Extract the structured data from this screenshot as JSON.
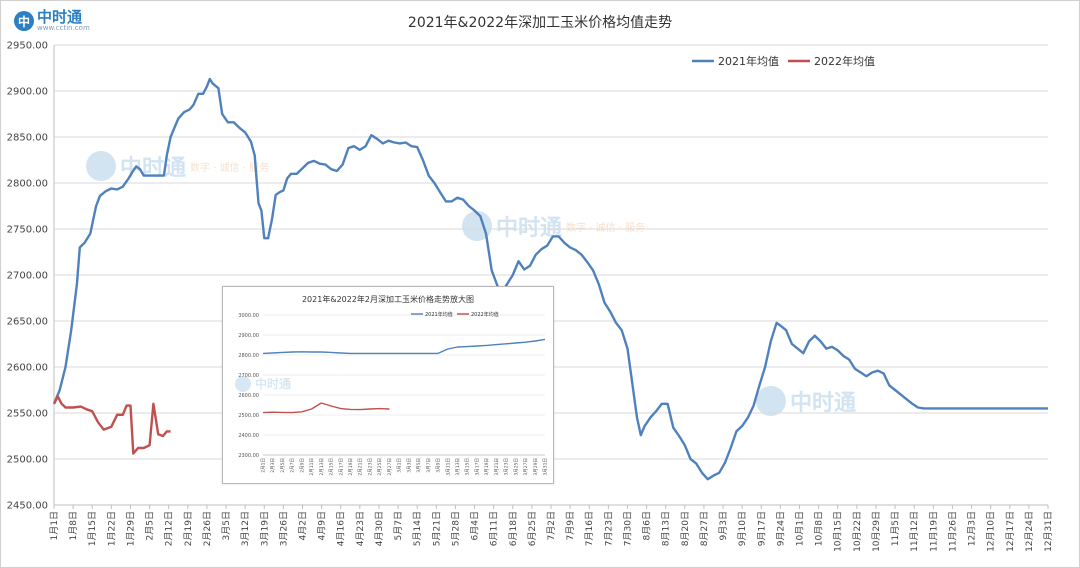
{
  "logo": {
    "name": "中时通",
    "url": "www.cctin.com"
  },
  "watermark": {
    "name": "中时通",
    "slogan": "数字 · 诚信 · 服务"
  },
  "chart_data": {
    "type": "line",
    "title": "2021年&2022年深加工玉米价格均值走势",
    "ylim": [
      2450,
      2950
    ],
    "y_ticks": [
      "2950.00",
      "2900.00",
      "2850.00",
      "2800.00",
      "2750.00",
      "2700.00",
      "2650.00",
      "2600.00",
      "2550.00",
      "2500.00",
      "2450.00"
    ],
    "categories": [
      "1月1日",
      "1月8日",
      "1月15日",
      "1月22日",
      "1月29日",
      "2月5日",
      "2月12日",
      "2月19日",
      "2月26日",
      "3月5日",
      "3月12日",
      "3月19日",
      "3月26日",
      "4月2日",
      "4月9日",
      "4月16日",
      "4月23日",
      "4月30日",
      "5月7日",
      "5月14日",
      "5月21日",
      "5月28日",
      "6月4日",
      "6月11日",
      "6月18日",
      "6月25日",
      "7月2日",
      "7月9日",
      "7月16日",
      "7月23日",
      "7月30日",
      "8月6日",
      "8月13日",
      "8月20日",
      "8月27日",
      "9月3日",
      "9月10日",
      "9月17日",
      "9月24日",
      "10月1日",
      "10月8日",
      "10月15日",
      "10月22日",
      "10月29日",
      "11月5日",
      "11月12日",
      "11月19日",
      "11月26日",
      "12月3日",
      "12月10日",
      "12月17日",
      "12月24日",
      "12月31日"
    ],
    "legend_position": "top-right",
    "series": [
      {
        "name": "2021年均值",
        "color": "#4f81bd",
        "points": [
          [
            0,
            2560
          ],
          [
            0.3,
            2575
          ],
          [
            0.6,
            2600
          ],
          [
            0.9,
            2640
          ],
          [
            1.2,
            2690
          ],
          [
            1.35,
            2730
          ],
          [
            1.6,
            2735
          ],
          [
            1.9,
            2745
          ],
          [
            2.2,
            2775
          ],
          [
            2.4,
            2786
          ],
          [
            2.7,
            2791
          ],
          [
            3.0,
            2794
          ],
          [
            3.3,
            2793
          ],
          [
            3.6,
            2796
          ],
          [
            3.9,
            2805
          ],
          [
            4.1,
            2812
          ],
          [
            4.3,
            2818
          ],
          [
            4.5,
            2815
          ],
          [
            4.7,
            2808
          ],
          [
            5.0,
            2808
          ],
          [
            5.5,
            2808
          ],
          [
            5.75,
            2808
          ],
          [
            5.9,
            2830
          ],
          [
            6.1,
            2850
          ],
          [
            6.3,
            2860
          ],
          [
            6.5,
            2870
          ],
          [
            6.8,
            2877
          ],
          [
            7.1,
            2880
          ],
          [
            7.3,
            2885
          ],
          [
            7.55,
            2897
          ],
          [
            7.8,
            2897
          ],
          [
            8.0,
            2905
          ],
          [
            8.15,
            2913
          ],
          [
            8.3,
            2908
          ],
          [
            8.6,
            2903
          ],
          [
            8.8,
            2875
          ],
          [
            9.1,
            2866
          ],
          [
            9.4,
            2866
          ],
          [
            9.7,
            2860
          ],
          [
            10.0,
            2855
          ],
          [
            10.3,
            2845
          ],
          [
            10.5,
            2830
          ],
          [
            10.7,
            2778
          ],
          [
            10.85,
            2770
          ],
          [
            11.0,
            2740
          ],
          [
            11.2,
            2740
          ],
          [
            11.4,
            2760
          ],
          [
            11.6,
            2787
          ],
          [
            11.8,
            2790
          ],
          [
            12.0,
            2792
          ],
          [
            12.2,
            2805
          ],
          [
            12.4,
            2810
          ],
          [
            12.7,
            2810
          ],
          [
            13.0,
            2816
          ],
          [
            13.3,
            2822
          ],
          [
            13.6,
            2824
          ],
          [
            13.9,
            2821
          ],
          [
            14.2,
            2820
          ],
          [
            14.5,
            2815
          ],
          [
            14.8,
            2813
          ],
          [
            15.1,
            2820
          ],
          [
            15.4,
            2838
          ],
          [
            15.7,
            2840
          ],
          [
            16.0,
            2836
          ],
          [
            16.3,
            2840
          ],
          [
            16.6,
            2852
          ],
          [
            16.9,
            2848
          ],
          [
            17.2,
            2843
          ],
          [
            17.5,
            2846
          ],
          [
            17.8,
            2844
          ],
          [
            18.1,
            2843
          ],
          [
            18.4,
            2844
          ],
          [
            18.7,
            2840
          ],
          [
            19.0,
            2839
          ],
          [
            19.3,
            2825
          ],
          [
            19.6,
            2808
          ],
          [
            19.9,
            2800
          ],
          [
            20.2,
            2790
          ],
          [
            20.5,
            2780
          ],
          [
            20.8,
            2780
          ],
          [
            21.1,
            2784
          ],
          [
            21.4,
            2782
          ],
          [
            21.7,
            2775
          ],
          [
            22.0,
            2770
          ],
          [
            22.3,
            2764
          ],
          [
            22.6,
            2745
          ],
          [
            22.9,
            2705
          ],
          [
            23.2,
            2688
          ],
          [
            23.4,
            2680
          ],
          [
            23.7,
            2690
          ],
          [
            24.0,
            2700
          ],
          [
            24.3,
            2715
          ],
          [
            24.6,
            2706
          ],
          [
            24.9,
            2710
          ],
          [
            25.2,
            2722
          ],
          [
            25.5,
            2728
          ],
          [
            25.8,
            2732
          ],
          [
            26.1,
            2742
          ],
          [
            26.4,
            2742
          ],
          [
            26.7,
            2735
          ],
          [
            27.0,
            2730
          ],
          [
            27.3,
            2727
          ],
          [
            27.6,
            2722
          ],
          [
            27.9,
            2714
          ],
          [
            28.2,
            2705
          ],
          [
            28.5,
            2690
          ],
          [
            28.8,
            2670
          ],
          [
            29.1,
            2660
          ],
          [
            29.4,
            2648
          ],
          [
            29.7,
            2640
          ],
          [
            30.0,
            2620
          ],
          [
            30.3,
            2575
          ],
          [
            30.5,
            2545
          ],
          [
            30.7,
            2526
          ],
          [
            30.9,
            2536
          ],
          [
            31.2,
            2545
          ],
          [
            31.5,
            2552
          ],
          [
            31.8,
            2560
          ],
          [
            32.1,
            2560
          ],
          [
            32.4,
            2534
          ],
          [
            32.7,
            2525
          ],
          [
            33.0,
            2515
          ],
          [
            33.3,
            2500
          ],
          [
            33.6,
            2495
          ],
          [
            33.9,
            2485
          ],
          [
            34.2,
            2478
          ],
          [
            34.5,
            2482
          ],
          [
            34.8,
            2485
          ],
          [
            35.1,
            2496
          ],
          [
            35.4,
            2512
          ],
          [
            35.7,
            2530
          ],
          [
            36.0,
            2536
          ],
          [
            36.3,
            2545
          ],
          [
            36.6,
            2558
          ],
          [
            36.9,
            2580
          ],
          [
            37.2,
            2600
          ],
          [
            37.5,
            2628
          ],
          [
            37.8,
            2648
          ],
          [
            38.0,
            2645
          ],
          [
            38.3,
            2640
          ],
          [
            38.6,
            2625
          ],
          [
            38.9,
            2620
          ],
          [
            39.2,
            2615
          ],
          [
            39.5,
            2628
          ],
          [
            39.8,
            2634
          ],
          [
            40.1,
            2628
          ],
          [
            40.4,
            2620
          ],
          [
            40.7,
            2622
          ],
          [
            41.0,
            2618
          ],
          [
            41.3,
            2612
          ],
          [
            41.6,
            2608
          ],
          [
            41.9,
            2598
          ],
          [
            42.2,
            2594
          ],
          [
            42.5,
            2590
          ],
          [
            42.8,
            2594
          ],
          [
            43.1,
            2596
          ],
          [
            43.4,
            2593
          ],
          [
            43.7,
            2580
          ],
          [
            44.0,
            2575
          ],
          [
            44.3,
            2570
          ],
          [
            44.6,
            2565
          ],
          [
            44.9,
            2560
          ],
          [
            45.2,
            2556
          ],
          [
            45.5,
            2555
          ],
          [
            52,
            2555
          ]
        ]
      },
      {
        "name": "2022年均值",
        "color": "#c0504d",
        "points": [
          [
            0,
            2560
          ],
          [
            0.2,
            2568
          ],
          [
            0.4,
            2560
          ],
          [
            0.6,
            2556
          ],
          [
            1.0,
            2556
          ],
          [
            1.4,
            2557
          ],
          [
            1.7,
            2554
          ],
          [
            2.0,
            2552
          ],
          [
            2.3,
            2540
          ],
          [
            2.6,
            2532
          ],
          [
            3.0,
            2535
          ],
          [
            3.3,
            2548
          ],
          [
            3.6,
            2548
          ],
          [
            3.8,
            2558
          ],
          [
            4.0,
            2558
          ],
          [
            4.15,
            2506
          ],
          [
            4.4,
            2512
          ],
          [
            4.7,
            2512
          ],
          [
            5.0,
            2515
          ],
          [
            5.2,
            2560
          ],
          [
            5.45,
            2527
          ],
          [
            5.7,
            2525
          ],
          [
            5.9,
            2530
          ],
          [
            6.1,
            2530
          ]
        ]
      }
    ]
  },
  "inset_chart": {
    "type": "line",
    "title": "2021年&2022年2月深加工玉米价格走势放大图",
    "ylim": [
      2300,
      3000
    ],
    "y_ticks": [
      "3000.00",
      "2900.00",
      "2800.00",
      "2700.00",
      "2600.00",
      "2500.00",
      "2400.00",
      "2300.00"
    ],
    "legend_position": "top",
    "categories": [
      "2月1日",
      "2月3日",
      "2月5日",
      "2月7日",
      "2月9日",
      "2月11日",
      "2月13日",
      "2月15日",
      "2月17日",
      "2月19日",
      "2月21日",
      "2月23日",
      "2月25日",
      "2月27日",
      "3月1日",
      "3月3日",
      "3月5日",
      "3月7日",
      "3月9日",
      "3月11日",
      "3月13日",
      "3月15日",
      "3月17日",
      "3月19日",
      "3月21日",
      "3月23日",
      "3月25日",
      "3月27日",
      "3月29日",
      "3月31日"
    ],
    "series": [
      {
        "name": "2021年均值",
        "color": "#4f81bd",
        "values": [
          2808,
          2810,
          2813,
          2815,
          2816,
          2815,
          2815,
          2813,
          2810,
          2808,
          2808,
          2808,
          2808,
          2808,
          2808,
          2808,
          2808,
          2808,
          2808,
          2830,
          2840,
          2842,
          2845,
          2848,
          2852,
          2856,
          2860,
          2864,
          2870,
          2878
        ]
      },
      {
        "name": "2022年均值",
        "color": "#c0504d",
        "values": [
          2512,
          2514,
          2513,
          2512,
          2516,
          2530,
          2560,
          2545,
          2532,
          2528,
          2527,
          2530,
          2532,
          2530
        ]
      }
    ]
  }
}
